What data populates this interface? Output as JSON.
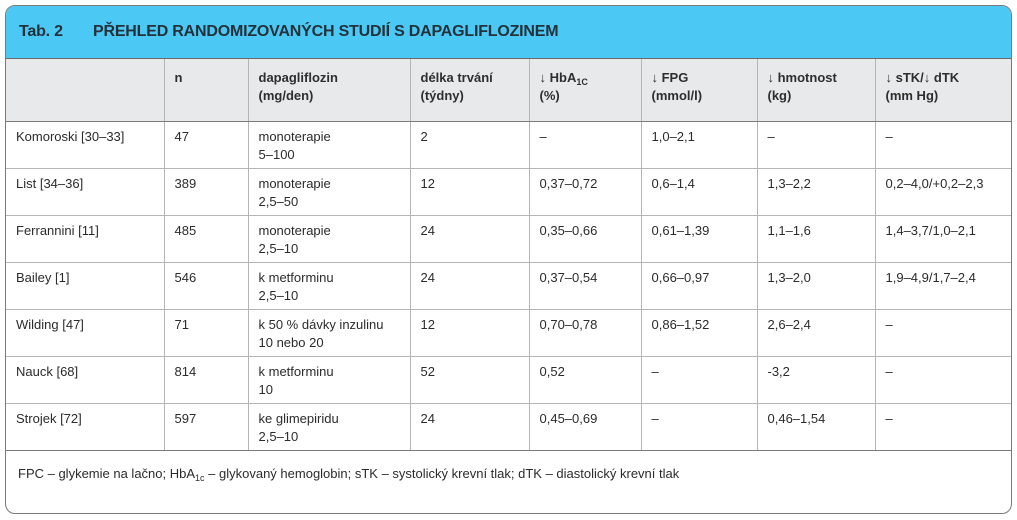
{
  "title": {
    "number": "Tab. 2",
    "text": "Přehled randomizovaných studií s dapagliflozinem"
  },
  "header": {
    "col1": "n",
    "col2_line1": "dapagliflozin",
    "col2_line2": "(mg/den)",
    "col3_line1": "délka trvání",
    "col3_line2": "(týdny)",
    "col4_arrow": "↓",
    "col4_main": " HbA",
    "col4_sub": "1C",
    "col4_line2": "(%)",
    "col5_line1": "↓ FPG",
    "col5_line2": "(mmol/l)",
    "col6_line1": "↓ hmotnost",
    "col6_line2": "(kg)",
    "col7_line1": "↓ sTK/↓ dTK",
    "col7_line2": "(mm Hg)"
  },
  "rows": [
    {
      "study": "Komoroski [30–33]",
      "n": "47",
      "dose1": "monoterapie",
      "dose2": "5–100",
      "duration": "2",
      "hba1c": "–",
      "fpg": "1,0–2,1",
      "weight": "–",
      "bp": "–"
    },
    {
      "study": "List [34–36]",
      "n": "389",
      "dose1": "monoterapie",
      "dose2": "2,5–50",
      "duration": "12",
      "hba1c": "0,37–0,72",
      "fpg": "0,6–1,4",
      "weight": "1,3–2,2",
      "bp": "0,2–4,0/+0,2–2,3"
    },
    {
      "study": "Ferrannini [11]",
      "n": "485",
      "dose1": "monoterapie",
      "dose2": "2,5–10",
      "duration": "24",
      "hba1c": "0,35–0,66",
      "fpg": "0,61–1,39",
      "weight": "1,1–1,6",
      "bp": "1,4–3,7/1,0–2,1"
    },
    {
      "study": "Bailey [1]",
      "n": "546",
      "dose1": "k metforminu",
      "dose2": "2,5–10",
      "duration": "24",
      "hba1c": "0,37–0,54",
      "fpg": "0,66–0,97",
      "weight": "1,3–2,0",
      "bp": "1,9–4,9/1,7–2,4"
    },
    {
      "study": "Wilding [47]",
      "n": "71",
      "dose1": "k 50 % dávky inzulinu",
      "dose2": "10 nebo 20",
      "duration": "12",
      "hba1c": "0,70–0,78",
      "fpg": "0,86–1,52",
      "weight": "2,6–2,4",
      "bp": "–"
    },
    {
      "study": "Nauck [68]",
      "n": "814",
      "dose1": "k metforminu",
      "dose2": "10",
      "duration": "52",
      "hba1c": "0,52",
      "fpg": "–",
      "weight": "-3,2",
      "bp": "–"
    },
    {
      "study": "Strojek [72]",
      "n": "597",
      "dose1": "ke glimepiridu",
      "dose2": "2,5–10",
      "duration": "24",
      "hba1c": "0,45–0,69",
      "fpg": "–",
      "weight": "0,46–1,54",
      "bp": "–"
    }
  ],
  "footnote": {
    "part1": "FPC – glykemie na lačno; HbA",
    "sub": "1c",
    "part2": " – glykovaný hemoglobin; sTK – systolický krevní tlak; dTK – diastolický krevní tlak"
  }
}
